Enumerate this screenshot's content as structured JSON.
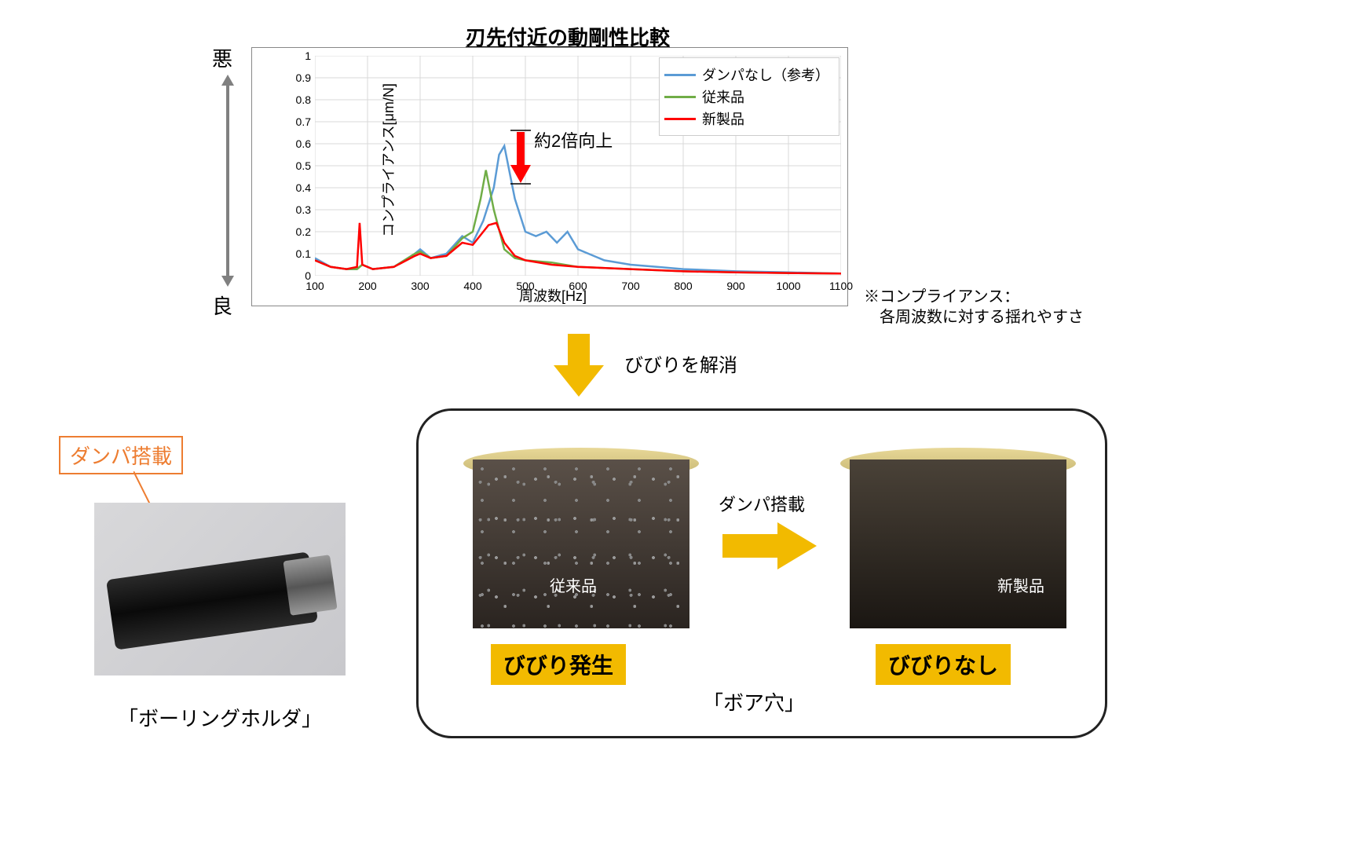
{
  "chart": {
    "title": "刃先付近の動剛性比較",
    "axis_bad": "悪",
    "axis_good": "良",
    "ylabel": "コンプライアンス[μm/N]",
    "xlabel": "周波数[Hz]",
    "ylim": [
      0,
      1
    ],
    "ytick_step": 0.1,
    "xlim": [
      100,
      1100
    ],
    "xtick_step": 100,
    "grid_color": "#d9d9d9",
    "bg": "#ffffff",
    "legend": [
      {
        "label": "ダンパなし（参考）",
        "color": "#5b9bd5",
        "width": 3
      },
      {
        "label": "従来品",
        "color": "#70ad47",
        "width": 3
      },
      {
        "label": "新製品",
        "color": "#ff0000",
        "width": 3
      }
    ],
    "annotation": "約2倍向上",
    "improvement_arrow_color": "#ff0000",
    "series": {
      "no_damper": {
        "color": "#5b9bd5",
        "x": [
          100,
          130,
          160,
          180,
          190,
          210,
          250,
          290,
          300,
          320,
          350,
          380,
          400,
          420,
          440,
          450,
          460,
          480,
          500,
          520,
          540,
          560,
          580,
          600,
          650,
          700,
          750,
          800,
          900,
          1000,
          1100
        ],
        "y": [
          0.08,
          0.04,
          0.03,
          0.03,
          0.05,
          0.03,
          0.04,
          0.1,
          0.12,
          0.08,
          0.1,
          0.18,
          0.15,
          0.25,
          0.4,
          0.55,
          0.59,
          0.35,
          0.2,
          0.18,
          0.2,
          0.15,
          0.2,
          0.12,
          0.07,
          0.05,
          0.04,
          0.03,
          0.02,
          0.015,
          0.01
        ]
      },
      "conventional": {
        "color": "#70ad47",
        "x": [
          100,
          130,
          160,
          180,
          190,
          210,
          250,
          290,
          300,
          320,
          350,
          380,
          400,
          415,
          425,
          440,
          460,
          480,
          500,
          550,
          600,
          700,
          800,
          900,
          1000,
          1100
        ],
        "y": [
          0.07,
          0.04,
          0.03,
          0.03,
          0.05,
          0.03,
          0.04,
          0.1,
          0.11,
          0.08,
          0.09,
          0.17,
          0.2,
          0.35,
          0.48,
          0.3,
          0.12,
          0.08,
          0.07,
          0.06,
          0.04,
          0.03,
          0.02,
          0.015,
          0.012,
          0.01
        ]
      },
      "new_product": {
        "color": "#ff0000",
        "x": [
          100,
          130,
          160,
          180,
          185,
          190,
          210,
          250,
          290,
          300,
          320,
          350,
          380,
          400,
          420,
          430,
          445,
          460,
          480,
          500,
          550,
          600,
          700,
          800,
          900,
          1000,
          1100
        ],
        "y": [
          0.07,
          0.04,
          0.03,
          0.04,
          0.24,
          0.05,
          0.03,
          0.04,
          0.09,
          0.1,
          0.08,
          0.09,
          0.15,
          0.14,
          0.2,
          0.23,
          0.24,
          0.15,
          0.09,
          0.07,
          0.05,
          0.04,
          0.03,
          0.02,
          0.015,
          0.012,
          0.01
        ]
      }
    }
  },
  "footnote_l1": "※コンプライアンス：",
  "footnote_l2": "　各周波数に対する揺れやすさ",
  "big_arrow_label": "びびりを解消",
  "big_arrow_color": "#f2ba00",
  "damper_label": "ダンパ搭載",
  "damper_label_color": "#ed7d31",
  "tool_caption": "「ボーリングホルダ」",
  "bore_arrow_label": "ダンパ搭載",
  "bore_arrow_color": "#f2ba00",
  "bore_title": "「ボア穴」",
  "bore1": {
    "inner_label": "従来品",
    "caption": "びびり発生"
  },
  "bore2": {
    "inner_label": "新製品",
    "caption": "びびりなし"
  },
  "highlight_bg": "#f2ba00"
}
